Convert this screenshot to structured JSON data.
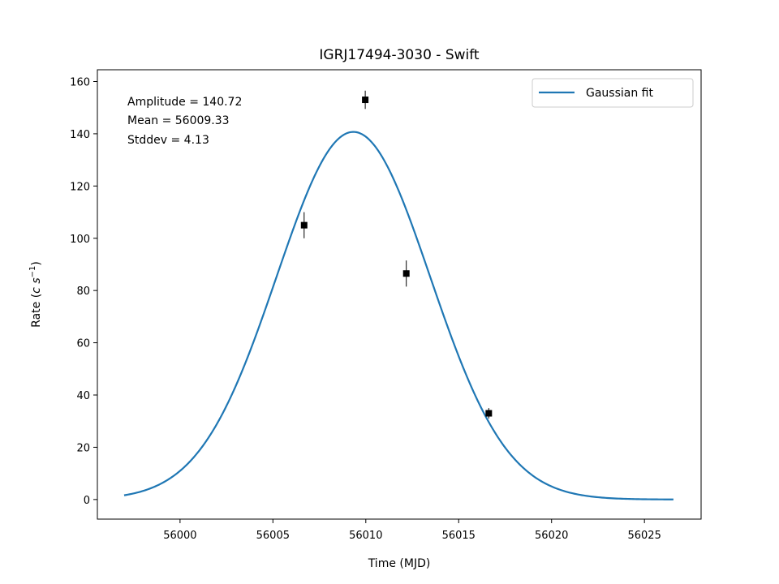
{
  "chart_data": {
    "type": "scatter",
    "title": "IGRJ17494-3030 - Swift",
    "xlabel": "Time (MJD)",
    "ylabel_prefix": "Rate (",
    "ylabel_unit": "c s",
    "ylabel_exp": "−1",
    "ylabel_suffix": ")",
    "xlim": [
      55995.55,
      56028.05
    ],
    "ylim": [
      -7.5,
      164.5
    ],
    "xticks": [
      56000,
      56005,
      56010,
      56015,
      56020,
      56025
    ],
    "yticks": [
      0,
      20,
      40,
      60,
      80,
      100,
      120,
      140,
      160
    ],
    "grid": false,
    "legend": {
      "position": "top-right",
      "entries": [
        "Gaussian fit"
      ]
    },
    "annotations": [
      "Amplitude = 140.72",
      "Mean = 56009.33",
      "Stddev = 4.13"
    ],
    "colors": {
      "fit": "#1f77b4",
      "points": "#000000"
    },
    "fit": {
      "name": "Gaussian fit",
      "function": "gaussian",
      "amplitude": 140.72,
      "mean": 56009.33,
      "stddev": 4.13,
      "x_range": [
        55996.99,
        56026.56
      ]
    },
    "points": [
      {
        "x": 56006.68,
        "y": 105.0,
        "yerr": 5.0
      },
      {
        "x": 56009.97,
        "y": 153.0,
        "yerr": 3.5
      },
      {
        "x": 56012.18,
        "y": 86.5,
        "yerr": 5.0
      },
      {
        "x": 56016.62,
        "y": 33.0,
        "yerr": 2.0
      }
    ]
  }
}
